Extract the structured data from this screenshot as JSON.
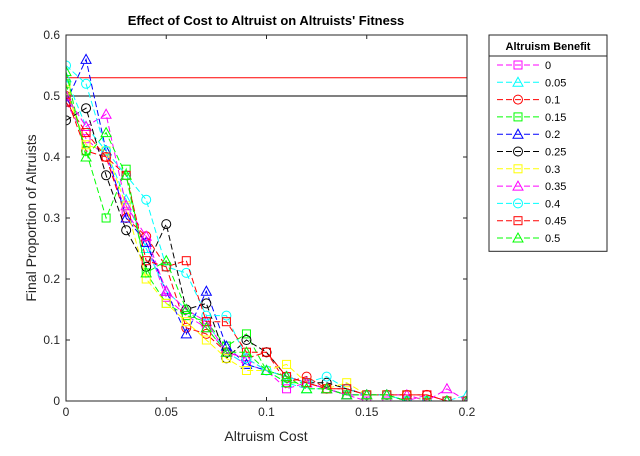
{
  "chart_data": {
    "type": "line",
    "title": "Effect of Cost to Altruist on Altruists' Fitness",
    "xlabel": "Altruism Cost",
    "ylabel": "Final Proportion of Altruists",
    "xlim": [
      0,
      0.2
    ],
    "ylim": [
      0,
      0.6
    ],
    "xticks": [
      0,
      0.05,
      0.1,
      0.15,
      0.2
    ],
    "xtick_labels": [
      "0",
      "0.05",
      "0.1",
      "0.15",
      "0.2"
    ],
    "yticks": [
      0,
      0.1,
      0.2,
      0.3,
      0.4,
      0.5,
      0.6
    ],
    "ytick_labels": [
      "0",
      "0.1",
      "0.2",
      "0.3",
      "0.4",
      "0.5",
      "0.6"
    ],
    "grid": false,
    "legend_title": "Altruism Benefit",
    "legend_position": "outside-right",
    "x": [
      0,
      0.01,
      0.02,
      0.03,
      0.04,
      0.05,
      0.06,
      0.07,
      0.08,
      0.09,
      0.1,
      0.11,
      0.12,
      0.13,
      0.14,
      0.15,
      0.16,
      0.17,
      0.18,
      0.19,
      0.2
    ],
    "series": [
      {
        "name": "0",
        "color": "#ff00ff",
        "marker": "square",
        "values": [
          0.49,
          0.43,
          0.4,
          0.31,
          0.26,
          0.17,
          0.14,
          0.12,
          0.08,
          0.06,
          0.05,
          0.02,
          0.03,
          0.02,
          0.01,
          0.0,
          0.0,
          0.0,
          0.01,
          0.0,
          0.0
        ]
      },
      {
        "name": "0.05",
        "color": "#00ffff",
        "marker": "triangle",
        "values": [
          0.53,
          0.45,
          0.41,
          0.33,
          0.25,
          0.18,
          0.15,
          0.13,
          0.08,
          0.06,
          0.05,
          0.03,
          0.02,
          0.02,
          0.01,
          0.01,
          0.01,
          0.0,
          0.0,
          0.0,
          0.01
        ]
      },
      {
        "name": "0.1",
        "color": "#ff0000",
        "marker": "circle",
        "values": [
          0.5,
          0.41,
          0.4,
          0.3,
          0.27,
          0.22,
          0.12,
          0.11,
          0.08,
          0.07,
          0.08,
          0.03,
          0.04,
          0.02,
          0.02,
          0.01,
          0.01,
          0.01,
          0.01,
          0.0,
          0.0
        ]
      },
      {
        "name": "0.15",
        "color": "#00ff00",
        "marker": "square",
        "values": [
          0.52,
          0.41,
          0.3,
          0.38,
          0.21,
          0.16,
          0.14,
          0.13,
          0.09,
          0.11,
          0.05,
          0.03,
          0.03,
          0.02,
          0.01,
          0.01,
          0.01,
          0.01,
          0.0,
          0.0,
          0.0
        ]
      },
      {
        "name": "0.2",
        "color": "#0000ff",
        "marker": "triangle",
        "values": [
          0.49,
          0.56,
          0.41,
          0.3,
          0.26,
          0.18,
          0.11,
          0.18,
          0.09,
          0.06,
          0.05,
          0.04,
          0.03,
          0.02,
          0.01,
          0.01,
          0.01,
          0.0,
          0.0,
          0.0,
          0.0
        ]
      },
      {
        "name": "0.25",
        "color": "#000000",
        "marker": "circle",
        "values": [
          0.46,
          0.48,
          0.37,
          0.28,
          0.22,
          0.29,
          0.15,
          0.16,
          0.07,
          0.1,
          0.08,
          0.04,
          0.03,
          0.03,
          0.02,
          0.01,
          0.01,
          0.0,
          0.0,
          0.0,
          0.0
        ]
      },
      {
        "name": "0.3",
        "color": "#ffff00",
        "marker": "square",
        "values": [
          0.51,
          0.42,
          0.41,
          0.32,
          0.2,
          0.16,
          0.13,
          0.1,
          0.07,
          0.05,
          0.05,
          0.06,
          0.03,
          0.02,
          0.03,
          0.01,
          0.01,
          0.01,
          0.0,
          0.0,
          0.0
        ]
      },
      {
        "name": "0.35",
        "color": "#ff00ff",
        "marker": "triangle",
        "values": [
          0.5,
          0.45,
          0.47,
          0.32,
          0.27,
          0.18,
          0.15,
          0.13,
          0.08,
          0.07,
          0.05,
          0.04,
          0.03,
          0.02,
          0.01,
          0.01,
          0.01,
          0.01,
          0.0,
          0.02,
          0.0
        ]
      },
      {
        "name": "0.4",
        "color": "#00ffff",
        "marker": "circle",
        "values": [
          0.55,
          0.52,
          0.41,
          0.37,
          0.33,
          0.22,
          0.21,
          0.14,
          0.14,
          0.07,
          0.05,
          0.04,
          0.03,
          0.04,
          0.02,
          0.01,
          0.01,
          0.0,
          0.0,
          0.0,
          0.0
        ]
      },
      {
        "name": "0.45",
        "color": "#ff0000",
        "marker": "square",
        "values": [
          0.49,
          0.44,
          0.4,
          0.37,
          0.23,
          0.22,
          0.23,
          0.13,
          0.13,
          0.08,
          0.08,
          0.04,
          0.03,
          0.02,
          0.02,
          0.01,
          0.01,
          0.01,
          0.01,
          0.0,
          0.0
        ]
      },
      {
        "name": "0.5",
        "color": "#00ff00",
        "marker": "triangle",
        "values": [
          0.54,
          0.4,
          0.44,
          0.37,
          0.21,
          0.23,
          0.15,
          0.12,
          0.08,
          0.08,
          0.05,
          0.04,
          0.02,
          0.02,
          0.01,
          0.01,
          0.01,
          0.0,
          0.0,
          0.0,
          0.0
        ]
      }
    ],
    "reference_lines": [
      {
        "y": 0.53,
        "color": "#ff0000"
      },
      {
        "y": 0.5,
        "color": "#000000"
      }
    ]
  }
}
